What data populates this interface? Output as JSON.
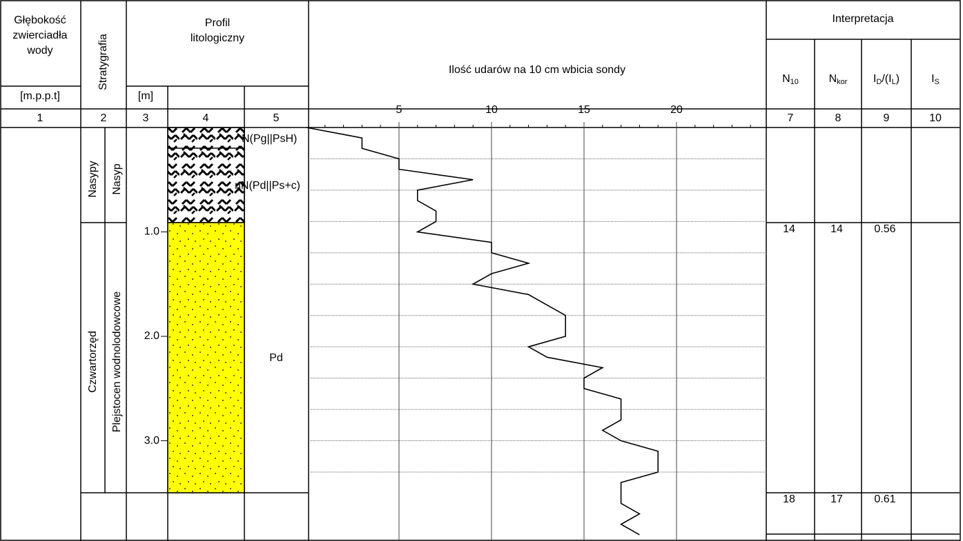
{
  "header": {
    "water_depth": [
      "Głębokość",
      "zwierciadła",
      "wody"
    ],
    "water_depth_unit": "[m.p.p.t]",
    "stratigraphy": "Stratygrafia",
    "profile": [
      "Profil",
      "litologiczny"
    ],
    "profile_unit": "[m]",
    "interpretation": "Interpretacja",
    "n10": [
      "N",
      "10"
    ],
    "nkor": [
      "N",
      "kor"
    ],
    "id_il": [
      "I",
      "D",
      "/(I",
      "L",
      ")"
    ],
    "is": [
      "I",
      "S"
    ],
    "column_numbers": [
      "1",
      "2",
      "3",
      "4",
      "5",
      "7",
      "8",
      "9",
      "10"
    ]
  },
  "stratigraphy": [
    {
      "label": "Nasypy",
      "sublabel": "Nasyp"
    },
    {
      "label": "Czwartorzęd",
      "sublabel": "Plejstocen wodnolodowcowe"
    }
  ],
  "lithology": [
    "N(Pg||PsH)",
    "nN(Pd||Ps+c)",
    "Pd"
  ],
  "interpretation_rows": [
    [
      "14",
      "14",
      "0.56"
    ],
    [
      "18",
      "17",
      "0.61"
    ]
  ],
  "chart_data": {
    "type": "line",
    "title": "Ilość udarów na 10 cm wbicia sondy",
    "x": [
      0,
      0.1,
      0.2,
      0.3,
      0.4,
      0.5,
      0.6,
      0.7,
      0.8,
      0.9,
      1.0,
      1.1,
      1.2,
      1.3,
      1.4,
      1.5,
      1.6,
      1.7,
      1.8,
      1.9,
      2.0,
      2.1,
      2.2,
      2.3,
      2.4,
      2.5,
      2.6,
      2.7,
      2.8,
      2.9,
      3.0,
      3.1,
      3.2,
      3.3,
      3.4,
      3.5,
      3.6,
      3.7,
      3.8,
      3.9
    ],
    "series": [
      {
        "color": "#000000",
        "values": [
          0,
          3,
          3,
          5,
          5,
          9,
          6,
          6,
          7,
          7,
          6,
          10,
          10,
          12,
          10,
          9,
          12,
          13,
          14,
          14,
          14,
          12,
          13,
          16,
          15,
          15,
          17,
          17,
          17,
          16,
          17,
          19,
          19,
          19,
          17,
          17,
          17,
          18,
          17,
          18
        ]
      }
    ],
    "blowlim": [
      0,
      25
    ],
    "blowticks": [
      5,
      10,
      15,
      20
    ],
    "depthlim": [
      0,
      3.96
    ],
    "depthticks": [
      {
        "value": 1,
        "label": "1.0"
      },
      {
        "value": 2,
        "label": "2.0"
      },
      {
        "value": 3,
        "label": "3.0"
      }
    ],
    "depthgrid": [
      0.3,
      0.6,
      0.9,
      1.2,
      1.5,
      1.8,
      2.1,
      2.4,
      2.7,
      3.0,
      3.3
    ]
  }
}
